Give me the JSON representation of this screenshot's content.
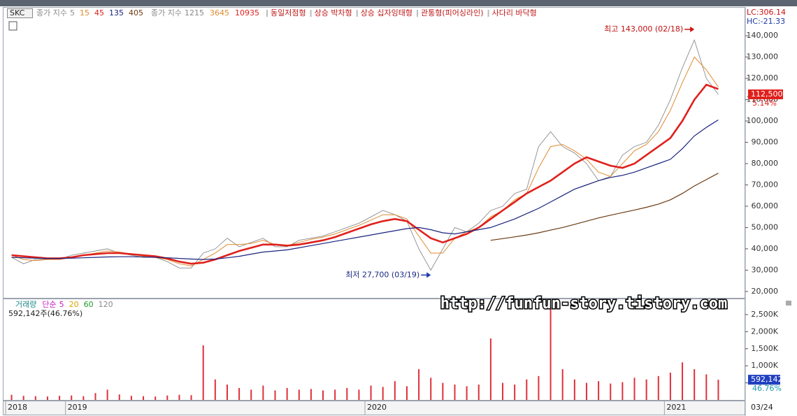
{
  "chart_data": [
    {
      "type": "line",
      "title": "SKC",
      "legend_label": "종가 지수",
      "categories": [
        "2018",
        null,
        null,
        null,
        null,
        "2019",
        null,
        null,
        null,
        null,
        null,
        null,
        null,
        null,
        null,
        null,
        null,
        null,
        null,
        null,
        null,
        null,
        null,
        null,
        null,
        null,
        null,
        null,
        null,
        null,
        "2020",
        null,
        null,
        null,
        null,
        null,
        null,
        null,
        null,
        null,
        null,
        null,
        null,
        null,
        null,
        null,
        null,
        null,
        null,
        null,
        null,
        null,
        null,
        null,
        null,
        "2021",
        null,
        null,
        null,
        null
      ],
      "series": [
        {
          "name": "5",
          "color": "#8c8c8c",
          "values": [
            36000,
            33000,
            35000,
            35000,
            35000,
            37000,
            38000,
            39000,
            40000,
            38000,
            37000,
            36000,
            36000,
            34000,
            31000,
            31000,
            38000,
            40000,
            45000,
            41000,
            43000,
            45000,
            41000,
            41000,
            44000,
            45000,
            46000,
            48000,
            50000,
            52000,
            55000,
            58000,
            56000,
            53000,
            40000,
            30000,
            40000,
            50000,
            48000,
            52000,
            58000,
            60000,
            66000,
            68000,
            88000,
            95000,
            88000,
            85000,
            80000,
            72000,
            74000,
            84000,
            88000,
            90000,
            98000,
            110000,
            125000,
            138000,
            120000,
            112500
          ]
        },
        {
          "name": "15",
          "color": "#e08a2e",
          "values": [
            37000,
            35000,
            34500,
            35000,
            35000,
            36000,
            37000,
            38000,
            39000,
            38500,
            37500,
            36500,
            36000,
            35000,
            33000,
            32000,
            35000,
            38000,
            42000,
            42000,
            42500,
            44000,
            42000,
            41500,
            43000,
            44500,
            45500,
            47000,
            49000,
            51000,
            53500,
            56000,
            56000,
            54000,
            46000,
            38000,
            38000,
            45000,
            48000,
            50000,
            55000,
            58000,
            63000,
            66000,
            78000,
            88000,
            89000,
            86000,
            82000,
            76000,
            74000,
            80000,
            86000,
            89000,
            95000,
            105000,
            118000,
            130000,
            124000,
            116000
          ]
        },
        {
          "name": "45",
          "color": "#e0201c",
          "values": [
            37000,
            36500,
            36000,
            35500,
            35500,
            36000,
            37000,
            37500,
            38000,
            38000,
            37500,
            37000,
            36500,
            35500,
            34000,
            33000,
            33500,
            35000,
            37000,
            39000,
            40500,
            42000,
            42000,
            41500,
            42000,
            43000,
            44000,
            45500,
            47500,
            49500,
            51500,
            53000,
            54000,
            53000,
            49000,
            45000,
            43000,
            45000,
            47000,
            50000,
            54000,
            58000,
            62000,
            66000,
            69000,
            72000,
            76000,
            80000,
            83000,
            81000,
            79000,
            78000,
            80000,
            84000,
            88000,
            92000,
            100000,
            110000,
            117000,
            115000
          ]
        },
        {
          "name": "135",
          "color": "#1a237e",
          "values": [
            36000,
            35800,
            35600,
            35500,
            35500,
            35600,
            35800,
            36000,
            36200,
            36300,
            36300,
            36200,
            36000,
            35800,
            35500,
            35200,
            35000,
            35200,
            35800,
            36500,
            37500,
            38500,
            39000,
            39500,
            40500,
            41500,
            42500,
            43500,
            44500,
            45500,
            46500,
            47500,
            48500,
            49500,
            50000,
            49000,
            47500,
            47000,
            48000,
            49000,
            50000,
            52000,
            54000,
            56500,
            59000,
            62000,
            65000,
            68000,
            70000,
            72000,
            73500,
            74500,
            76000,
            78000,
            80000,
            82000,
            87000,
            93000,
            97000,
            100500
          ]
        },
        {
          "name": "405",
          "color": "#6b3a12",
          "values": [
            null,
            null,
            null,
            null,
            null,
            null,
            null,
            null,
            null,
            null,
            null,
            null,
            null,
            null,
            null,
            null,
            null,
            null,
            null,
            null,
            null,
            null,
            null,
            null,
            null,
            null,
            null,
            null,
            null,
            null,
            null,
            null,
            null,
            null,
            null,
            null,
            null,
            null,
            null,
            null,
            44000,
            44800,
            45600,
            46500,
            47500,
            48800,
            50000,
            51500,
            53000,
            54500,
            55800,
            57000,
            58200,
            59500,
            61000,
            63000,
            66000,
            69500,
            72500,
            75500
          ]
        }
      ],
      "extra_legend": {
        "label": "종가 지수",
        "items": [
          "1215",
          "3645",
          "10935"
        ]
      },
      "patterns": [
        "동일저점형",
        "상승 박차형",
        "상승 십자잉태형",
        "관통형(피어싱라인)",
        "사다리 바닥형"
      ],
      "lc_label": "LC:306.14",
      "hc_label": "HC:-21.33",
      "high": {
        "value": 143000,
        "label": "최고 143,000 (02/18)"
      },
      "low": {
        "value": 27700,
        "label": "최저 27,700 (03/19)"
      },
      "last_price": {
        "value": 112500,
        "label": "112,500"
      },
      "change_label": "5.14%",
      "ylim": [
        17000,
        153500
      ],
      "yticks": [
        {
          "value": 20000,
          "label": "20,000"
        },
        {
          "value": 30000,
          "label": "30,000"
        },
        {
          "value": 40000,
          "label": "40,000"
        },
        {
          "value": 50000,
          "label": "50,000"
        },
        {
          "value": 60000,
          "label": "60,000"
        },
        {
          "value": 70000,
          "label": "70,000"
        },
        {
          "value": 80000,
          "label": "80,000"
        },
        {
          "value": 90000,
          "label": "90,000"
        },
        {
          "value": 100000,
          "label": "100,000"
        },
        {
          "value": 110000,
          "label": "110,000"
        },
        {
          "value": 120000,
          "label": "120,000"
        },
        {
          "value": 130000,
          "label": "130,000"
        },
        {
          "value": 140000,
          "label": "140,000"
        }
      ],
      "last_date_label": "03/24"
    },
    {
      "type": "bar",
      "title": "거래량",
      "ma_label": "단순",
      "ma_items": [
        {
          "name": "5",
          "color": "#c81ec8"
        },
        {
          "name": "20",
          "color": "#d9a400"
        },
        {
          "name": "60",
          "color": "#1f9a2a"
        },
        {
          "name": "120",
          "color": "#8a8a8a"
        }
      ],
      "summary": "592,142주(46.76%)",
      "color": "#e0303a",
      "values": [
        150000,
        120000,
        110000,
        100000,
        120000,
        130000,
        110000,
        200000,
        300000,
        160000,
        120000,
        110000,
        100000,
        130000,
        150000,
        140000,
        1600000,
        600000,
        450000,
        350000,
        300000,
        420000,
        280000,
        350000,
        300000,
        320000,
        280000,
        300000,
        350000,
        300000,
        420000,
        380000,
        550000,
        400000,
        900000,
        650000,
        500000,
        450000,
        400000,
        450000,
        1800000,
        500000,
        450000,
        600000,
        700000,
        2700000,
        900000,
        600000,
        500000,
        550000,
        480000,
        520000,
        650000,
        600000,
        700000,
        800000,
        1100000,
        900000,
        750000,
        592142
      ],
      "last_value": {
        "value": 592142,
        "label": "592,142"
      },
      "ratio_label": "46.76%",
      "ylim": [
        0,
        2950000
      ],
      "yticks": [
        {
          "value": 500000,
          "label": "500K"
        },
        {
          "value": 1000000,
          "label": "1,000K"
        },
        {
          "value": 1500000,
          "label": "1,500K"
        },
        {
          "value": 2000000,
          "label": "2,000K"
        },
        {
          "value": 2500000,
          "label": "2,500K"
        }
      ]
    }
  ],
  "watermark": "http://funfun-story.tistory.com"
}
